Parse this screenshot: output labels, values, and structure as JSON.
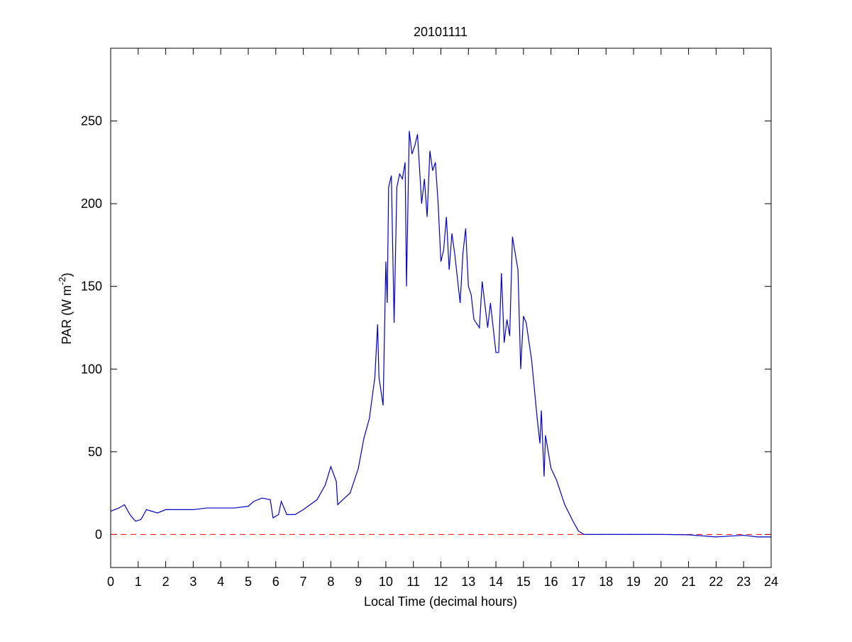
{
  "chart_data": {
    "type": "line",
    "title": "20101111",
    "xlabel": "Local Time (decimal hours)",
    "ylabel": {
      "text": "PAR (W m",
      "superscript": "-2",
      "suffix": ")"
    },
    "xlim": [
      0,
      24
    ],
    "xticks": [
      0,
      1,
      2,
      3,
      4,
      5,
      6,
      7,
      8,
      9,
      10,
      11,
      12,
      13,
      14,
      15,
      16,
      17,
      18,
      19,
      20,
      21,
      22,
      23,
      24
    ],
    "ylim": [
      -20,
      294
    ],
    "yticks": [
      0,
      50,
      100,
      150,
      200,
      250
    ],
    "grid": false,
    "reference_line": {
      "value": 0,
      "color": "#ff0000"
    },
    "series": [
      {
        "color": "#0000c8",
        "x": [
          0,
          0.3,
          0.5,
          0.7,
          0.9,
          1.1,
          1.3,
          1.5,
          1.7,
          2,
          2.5,
          3,
          3.5,
          4,
          4.5,
          5,
          5.2,
          5.5,
          5.8,
          5.9,
          6.1,
          6.2,
          6.4,
          6.7,
          7,
          7.5,
          7.8,
          8.0,
          8.2,
          8.25,
          8.5,
          8.7,
          9.0,
          9.2,
          9.4,
          9.6,
          9.7,
          9.75,
          9.9,
          10.0,
          10.05,
          10.1,
          10.2,
          10.3,
          10.4,
          10.5,
          10.6,
          10.7,
          10.75,
          10.85,
          10.95,
          11.05,
          11.15,
          11.3,
          11.4,
          11.5,
          11.6,
          11.7,
          11.8,
          11.9,
          12.0,
          12.1,
          12.2,
          12.3,
          12.4,
          12.5,
          12.6,
          12.7,
          12.8,
          12.9,
          13.0,
          13.1,
          13.2,
          13.4,
          13.5,
          13.7,
          13.8,
          14.0,
          14.1,
          14.2,
          14.3,
          14.4,
          14.5,
          14.6,
          14.7,
          14.8,
          14.9,
          15.0,
          15.1,
          15.3,
          15.5,
          15.6,
          15.65,
          15.75,
          15.8,
          16.0,
          16.2,
          16.5,
          16.8,
          17.0,
          17.2,
          18,
          20,
          21,
          22,
          22.5,
          23,
          23.5,
          24
        ],
        "values": [
          14,
          16,
          18,
          12,
          8,
          9,
          15,
          14,
          13,
          15,
          15,
          15,
          16,
          16,
          16,
          17,
          20,
          22,
          21,
          10,
          12,
          20,
          12,
          12,
          15,
          21,
          30,
          41,
          32,
          18,
          22,
          25,
          40,
          58,
          70,
          95,
          127,
          95,
          78,
          165,
          140,
          210,
          217,
          128,
          210,
          218,
          215,
          225,
          150,
          244,
          230,
          235,
          242,
          200,
          215,
          192,
          232,
          220,
          225,
          200,
          165,
          172,
          192,
          160,
          182,
          170,
          155,
          140,
          170,
          185,
          150,
          145,
          130,
          125,
          153,
          125,
          140,
          110,
          110,
          158,
          116,
          130,
          120,
          180,
          170,
          160,
          100,
          132,
          128,
          105,
          70,
          55,
          75,
          35,
          60,
          40,
          33,
          18,
          8,
          2,
          0,
          0,
          0,
          -0.2,
          -1.5,
          -1,
          -0.5,
          -1.5,
          -1.5
        ]
      }
    ]
  }
}
